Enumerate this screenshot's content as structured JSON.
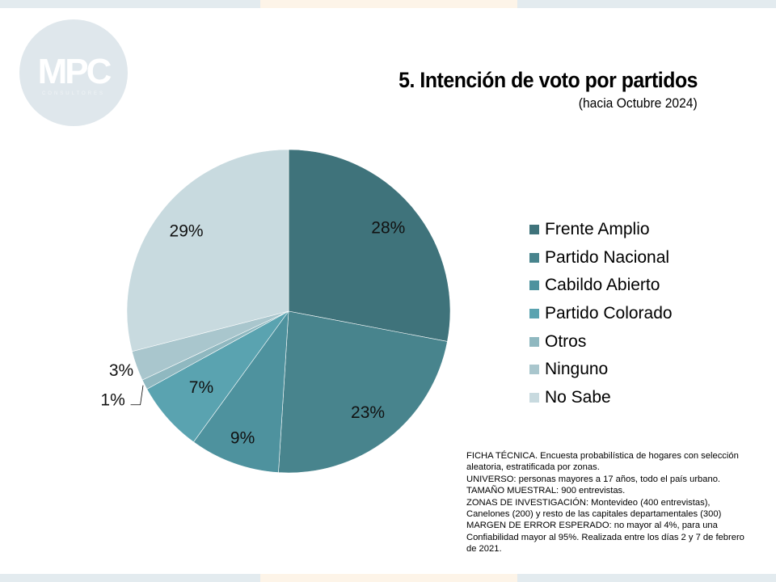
{
  "logo": {
    "text": "MPC",
    "subtext": "CONSULTORES"
  },
  "chart_data": {
    "type": "pie",
    "title": "5. Intención de voto por partidos",
    "subtitle": "(hacia Octubre 2024)",
    "legend_position": "right",
    "categories": [
      "Frente Amplio",
      "Partido Nacional",
      "Cabildo Abierto",
      "Partido Colorado",
      "Otros",
      "Ninguno",
      "No Sabe"
    ],
    "values": [
      28,
      23,
      9,
      7,
      1,
      3,
      29
    ],
    "labels": [
      "28%",
      "23%",
      "9%",
      "7%",
      "1%",
      "3%",
      "29%"
    ],
    "colors": [
      "#3f737b",
      "#48848d",
      "#4e929e",
      "#5aa3b0",
      "#8fb8c0",
      "#a9c6cd",
      "#c8dadf"
    ]
  },
  "ficha": [
    "FICHA TÉCNICA. Encuesta probabilística de hogares con selección aleatoria, estratificada por zonas.",
    "UNIVERSO: personas mayores a 17 años, todo el país urbano.",
    "TAMAÑO MUESTRAL: 900 entrevistas.",
    "ZONAS DE INVESTIGACIÓN: Montevideo (400 entrevistas), Canelones (200) y resto de las capitales departamentales (300)",
    "MARGEN DE ERROR ESPERADO: no mayor al 4%, para una Confiabilidad mayor al 95%. Realizada entre los días 2 y 7 de febrero de 2021."
  ]
}
